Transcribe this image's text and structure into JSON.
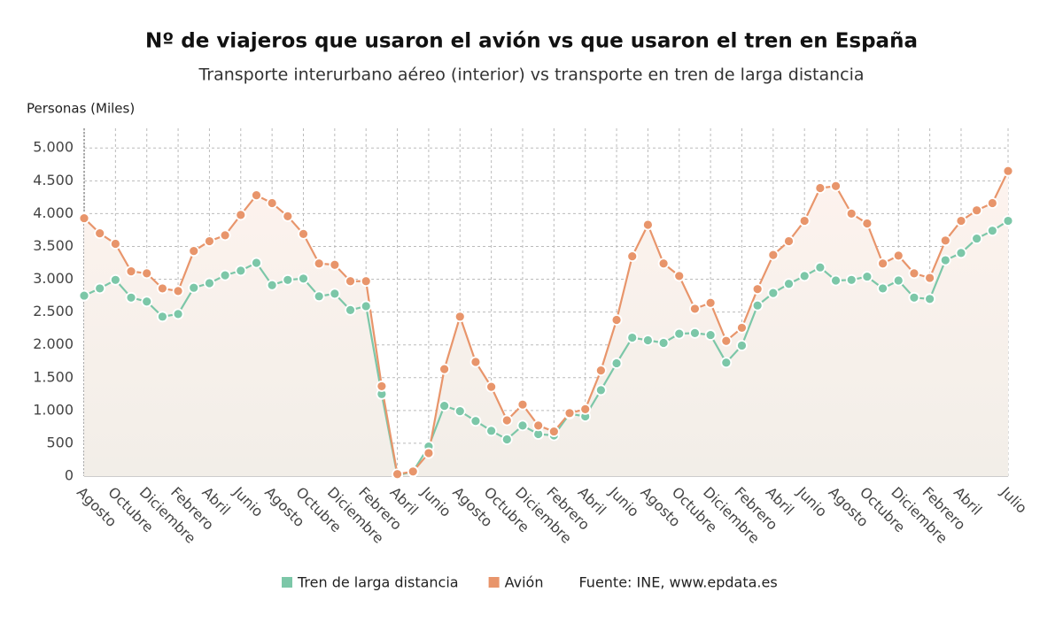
{
  "chart_data": {
    "type": "line",
    "title": "Nº de viajeros que usaron el avión vs que usaron el tren en España",
    "subtitle": "Transporte interurbano aéreo (interior) vs transporte en tren de larga distancia",
    "y_label": "Personas (Miles)",
    "source": "Fuente: INE, www.epdata.es",
    "categories": [
      "Agosto",
      null,
      "Octubre",
      null,
      "Diciembre",
      null,
      "Febrero",
      null,
      "Abril",
      null,
      "Junio",
      null,
      "Agosto",
      null,
      "Octubre",
      null,
      "Diciembre",
      null,
      "Febrero",
      null,
      "Abril",
      null,
      "Junio",
      null,
      "Agosto",
      null,
      "Octubre",
      null,
      "Diciembre",
      null,
      "Febrero",
      null,
      "Abril",
      null,
      "Junio",
      null,
      "Agosto",
      null,
      "Octubre",
      null,
      "Diciembre",
      null,
      "Febrero",
      null,
      "Abril",
      null,
      "Junio",
      null,
      "Agosto",
      null,
      "Octubre",
      null,
      "Diciembre",
      null,
      "Febrero",
      null,
      "Abril",
      null,
      null,
      "Julio"
    ],
    "series": [
      {
        "name": "Tren de larga distancia",
        "color": "#7cc7a8",
        "values": [
          2750,
          2860,
          2990,
          2720,
          2660,
          2430,
          2470,
          2870,
          2940,
          3060,
          3130,
          3250,
          2910,
          2990,
          3010,
          2740,
          2780,
          2530,
          2590,
          1250,
          10,
          70,
          450,
          1070,
          990,
          840,
          690,
          560,
          770,
          640,
          620,
          950,
          910,
          1310,
          1720,
          2110,
          2070,
          2030,
          2170,
          2180,
          2150,
          1730,
          1990,
          2600,
          2790,
          2930,
          3050,
          3180,
          2980,
          2990,
          3040,
          2860,
          2980,
          2720,
          2700,
          3290,
          3400,
          3620,
          3740,
          3890
        ]
      },
      {
        "name": "Avión",
        "color": "#e8956b",
        "values": [
          3930,
          3700,
          3540,
          3120,
          3090,
          2860,
          2820,
          3430,
          3580,
          3670,
          3980,
          4280,
          4160,
          3960,
          3690,
          3240,
          3220,
          2970,
          2970,
          1370,
          30,
          70,
          350,
          1630,
          2430,
          1740,
          1360,
          850,
          1090,
          770,
          680,
          960,
          1020,
          1610,
          2380,
          3350,
          3830,
          3240,
          3050,
          2550,
          2640,
          2060,
          2260,
          2850,
          3370,
          3580,
          3890,
          4390,
          4420,
          4000,
          3850,
          3240,
          3360,
          3090,
          3020,
          3590,
          3890,
          4050,
          4160,
          4650
        ]
      }
    ],
    "ylim": [
      0,
      5300
    ],
    "yticks": [
      0,
      500,
      {
        "value": 1000,
        "label": "1.000"
      },
      {
        "value": 1500,
        "label": "1.500"
      },
      {
        "value": 2000,
        "label": "2.000"
      },
      {
        "value": 2500,
        "label": "2.500"
      },
      {
        "value": 3000,
        "label": "3.000"
      },
      {
        "value": 3500,
        "label": "3.500"
      },
      {
        "value": 4000,
        "label": "4.000"
      },
      {
        "value": 4500,
        "label": "4.500"
      },
      {
        "value": 5000,
        "label": "5.000"
      }
    ],
    "grid": true
  }
}
